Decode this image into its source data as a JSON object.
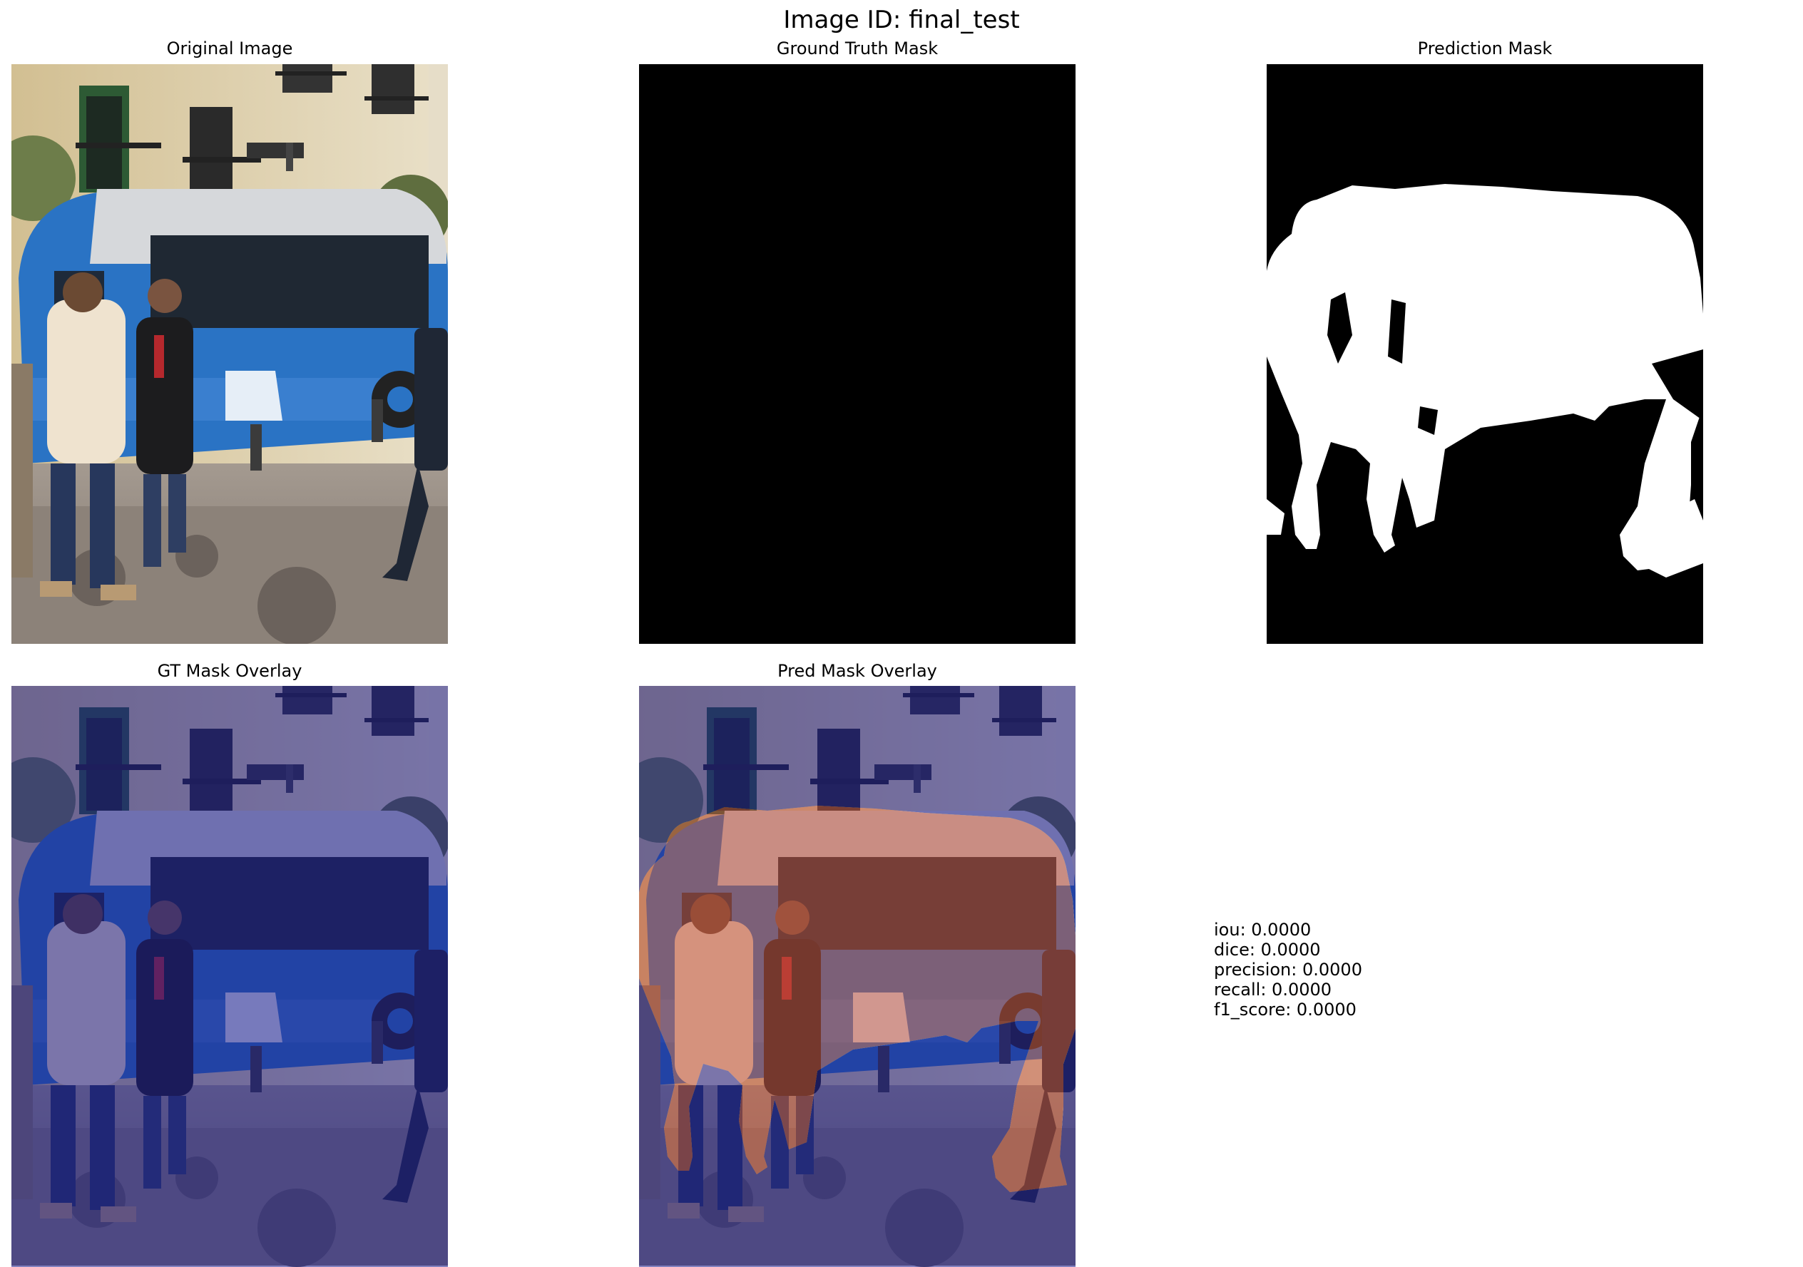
{
  "suptitle": "Image ID: final_test",
  "panels": {
    "original": {
      "title": "Original Image"
    },
    "gt_mask": {
      "title": "Ground Truth Mask"
    },
    "pred_mask": {
      "title": "Prediction Mask"
    },
    "gt_overlay": {
      "title": "GT Mask Overlay"
    },
    "pred_overlay": {
      "title": "Pred Mask Overlay"
    }
  },
  "metrics": [
    "iou: 0.0000",
    "dice: 0.0000",
    "precision: 0.0000",
    "recall: 0.0000",
    "f1_score: 0.0000"
  ],
  "colors": {
    "mask_background": "#000000",
    "mask_foreground": "#ffffff",
    "overlay_blue": "#1c1c8c",
    "overlay_red": "#c0503a",
    "bus_blue": "#2a73c4",
    "building": "#c8b486",
    "pavement": "#9a8f86"
  }
}
